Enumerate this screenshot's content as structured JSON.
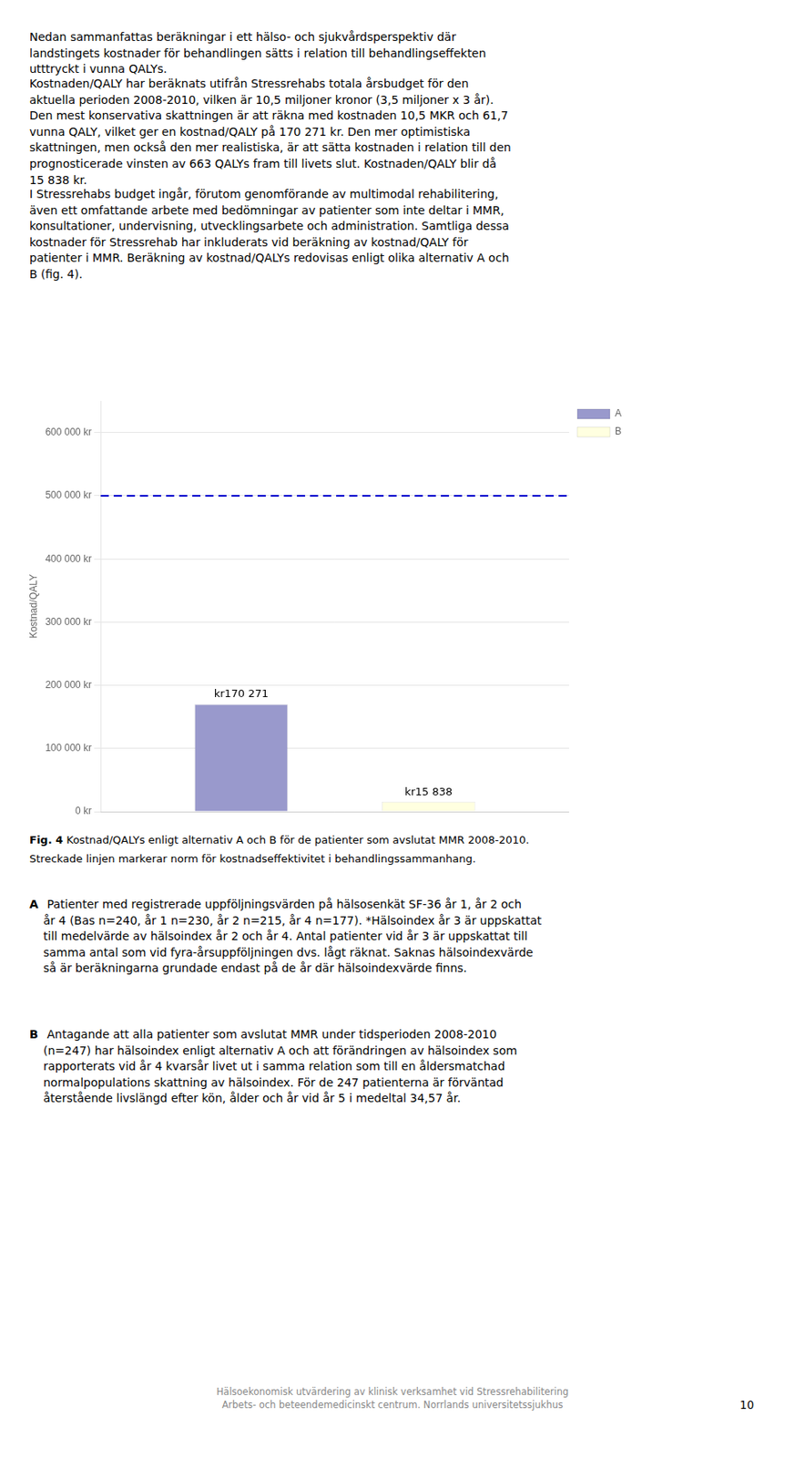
{
  "chart_data": {
    "type": "bar",
    "y_label": "Kostnad/QALY",
    "categories": [
      null
    ],
    "series": [
      {
        "name": "A",
        "color": "#9999cc",
        "values": [
          170271
        ],
        "value_labels": [
          "kr170 271"
        ]
      },
      {
        "name": "B",
        "color": "#ffffe0",
        "values": [
          15838
        ],
        "value_labels": [
          "kr15 838"
        ]
      }
    ],
    "ylim": [
      0,
      650000
    ],
    "yticks": [
      {
        "value": 0,
        "label": "0 kr"
      },
      {
        "value": 100000,
        "label": "100 000 kr"
      },
      {
        "value": 200000,
        "label": "200 000 kr"
      },
      {
        "value": 300000,
        "label": "300 000 kr"
      },
      {
        "value": 400000,
        "label": "400 000 kr"
      },
      {
        "value": 500000,
        "label": "500 000 kr"
      },
      {
        "value": 600000,
        "label": "600 000 kr"
      }
    ],
    "hlines": [
      {
        "y": 500000,
        "color": "#0000cc",
        "line_style": "dashed"
      }
    ],
    "grid": true,
    "legend": "right",
    "data_labels": true,
    "tick_labels": "y"
  },
  "page_text": {
    "text_blocks": [
      "Nedan sammanfattas beräkningar i ett hälso- och sjukvårdsperspektiv där\nlandstingets kostnader för behandlingen sätts i relation till behandlingseffekten\nutttryckt i vunna QALYs.",
      "Kostnaden/QALY har beräknats utifrån Stressrehabs totala årsbudget för den\naktuella perioden 2008-2010, vilken är 10,5 miljoner kronor (3,5 miljoner x 3 år).\nDen mest konservativa skattningen är att räkna med kostnaden 10,5 MKR och 61,7\nvunna QALY, vilket ger en kostnad/QALY på 170 271 kr. Den mer optimistiska\nskattningen, men också den mer realistiska, är att sätta kostnaden i relation till den\nprognosticerade vinsten av 663 QALYs fram till livets slut. Kostnaden/QALY blir då\n15 838 kr.",
      "I Stressrehabs budget ingår, förutom genomförande av multimodal rehabilitering,\näven ett omfattande arbete med bedömningar av patienter som inte deltar i MMR,\nkonsultationer, undervisning, utvecklingsarbete och administration. Samtliga dessa\nkostnader för Stressrehab har inkluderats vid beräkning av kostnad/QALY för\npatienter i MMR. Beräkning av kostnad/QALYs redovisas enligt olika alternativ A och\nB (fig. 4)."
    ],
    "caption_bold": "Fig. 4",
    "caption_rest": " Kostnad/QALYs enligt alternativ A och B för de patienter som avslutat MMR 2008-2010.",
    "caption_line2": "Streckade linjen markerar norm för kostnadseffektivitet i behandlingssammanhang.",
    "sections": [
      {
        "header": "A",
        "body": " Patienter med registrerade uppföljningsvärden på hälsosenkät SF-36 år 1, år 2 och\når 4 (Bas n=240, år 1 n=230, år 2 n=215, år 4 n=177). *Hälsoindex år 3 är uppskattat\ntill medelvärde av hälsoindex år 2 och år 4. Antal patienter vid år 3 är uppskattat till\nsamma antal som vid fyra-årsuppföljningen dvs. lågt räknat. Saknas hälsoindexvärde\nså är beräkningarna grundade endast på de år där hälsoindexvärde finns."
      },
      {
        "header": "B",
        "body": " Antagande att alla patienter som avslutat MMR under tidsperioden 2008-2010\n(n=247) har hälsoindex enligt alternativ A och att förändringen av hälsoindex som\nrapporterats vid år 4 kvarsår livet ut i samma relation som till en åldersmatchad\nnormalpopulations skattning av hälsoindex. För de 247 patienterna är förväntad\nåterstående livslängd efter kön, ålder och år vid år 5 i medeltal 34,57 år."
      }
    ],
    "footer": [
      "Hälsoekonomisk utvärdering av klinisk verksamhet vid Stressrehabilitering",
      "Arbets- och beteendemedicinskt centrum. Norrlands universitetssjukhus"
    ],
    "page_number": "10"
  }
}
